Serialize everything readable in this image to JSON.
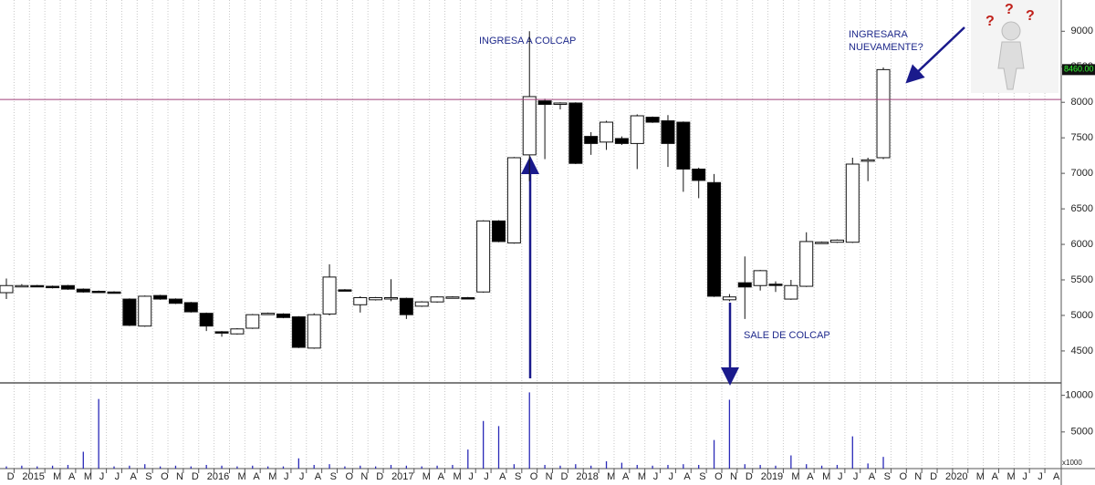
{
  "chart_data": {
    "type": "candlestick",
    "categories": [
      "D",
      "2015",
      null,
      "M",
      "A",
      "M",
      "J",
      "J",
      "A",
      "S",
      "O",
      "N",
      "D",
      "2016",
      null,
      "M",
      "A",
      "M",
      "J",
      "J",
      "A",
      "S",
      "O",
      "N",
      "D",
      "2017",
      null,
      "M",
      "A",
      "M",
      "J",
      "J",
      "A",
      "S",
      "O",
      "N",
      "D",
      "2018",
      null,
      "M",
      "A",
      "M",
      "J",
      "J",
      "A",
      "S",
      "O",
      "N",
      "D",
      "2019",
      null,
      "M",
      "A",
      "M",
      "J",
      "J",
      "A",
      "S",
      "O",
      "N",
      "D",
      "2020",
      null,
      "M",
      "A",
      "M",
      "J",
      "J",
      "A"
    ],
    "open": [
      5320,
      5420,
      5420,
      5410,
      5420,
      5370,
      5340,
      5330,
      5230,
      4850,
      5280,
      5230,
      5180,
      5030,
      4770,
      4740,
      4820,
      5030,
      5020,
      4980,
      4540,
      5020,
      5360,
      5150,
      5220,
      5240,
      5240,
      5130,
      5190,
      5250,
      5250,
      5330,
      6330,
      6020,
      7260,
      8020,
      7980,
      7990,
      7520,
      7440,
      7490,
      7420,
      7790,
      7740,
      7720,
      7060,
      6870,
      5220,
      5460,
      5420,
      5440,
      5230,
      5410,
      6020,
      6030,
      6030,
      7170,
      7220,
      null,
      null,
      null,
      null,
      null,
      null,
      null,
      null,
      null,
      null,
      null
    ],
    "high": [
      5520,
      5440,
      5430,
      5420,
      5430,
      5380,
      5350,
      5340,
      5240,
      5280,
      5290,
      5240,
      5190,
      5040,
      4780,
      4820,
      5020,
      5040,
      5030,
      4990,
      5030,
      5720,
      5370,
      5270,
      5260,
      5510,
      5250,
      5200,
      5270,
      5270,
      5260,
      6340,
      6340,
      7230,
      9000,
      8050,
      8000,
      8000,
      7580,
      7740,
      7520,
      7830,
      7800,
      7820,
      7730,
      7080,
      6990,
      5300,
      5830,
      5640,
      5480,
      5500,
      6170,
      6040,
      6070,
      7220,
      7220,
      8490,
      null,
      null,
      null,
      null,
      null,
      null,
      null,
      null,
      null,
      null,
      null
    ],
    "low": [
      5230,
      5410,
      5400,
      5380,
      5360,
      5320,
      5320,
      5310,
      4850,
      4840,
      5220,
      5160,
      5040,
      4780,
      4700,
      4730,
      4810,
      5020,
      4960,
      4540,
      4530,
      5000,
      5340,
      5040,
      5210,
      5200,
      4950,
      5120,
      5180,
      5240,
      5230,
      5320,
      6030,
      6010,
      6890,
      7200,
      7900,
      7130,
      7260,
      7330,
      7400,
      7060,
      7710,
      7090,
      6740,
      6650,
      5260,
      5200,
      4950,
      5350,
      5330,
      5220,
      5400,
      6010,
      6020,
      6020,
      6890,
      7200,
      null,
      null,
      null,
      null,
      null,
      null,
      null,
      null,
      null,
      null,
      null
    ],
    "close": [
      5420,
      5420,
      5410,
      5390,
      5370,
      5330,
      5330,
      5320,
      4860,
      5270,
      5230,
      5170,
      5050,
      4850,
      4750,
      4810,
      5010,
      5030,
      4970,
      4550,
      5010,
      5540,
      5350,
      5250,
      5250,
      5250,
      5010,
      5190,
      5260,
      5260,
      5240,
      6330,
      6040,
      7220,
      8080,
      7970,
      7990,
      7140,
      7420,
      7720,
      7420,
      7810,
      7720,
      7420,
      7060,
      6900,
      5270,
      5260,
      5400,
      5630,
      5430,
      5420,
      6040,
      6030,
      6060,
      7130,
      7190,
      8460,
      null,
      null,
      null,
      null,
      null,
      null,
      null,
      null,
      null,
      null,
      null
    ],
    "volume": [
      300,
      400,
      300,
      400,
      500,
      2300,
      9500,
      300,
      400,
      600,
      300,
      400,
      300,
      500,
      400,
      300,
      400,
      300,
      300,
      1400,
      500,
      600,
      300,
      400,
      300,
      500,
      400,
      300,
      400,
      500,
      2600,
      6500,
      5800,
      600,
      10400,
      500,
      400,
      600,
      400,
      1000,
      800,
      500,
      400,
      500,
      600,
      500,
      3900,
      9400,
      600,
      500,
      400,
      1800,
      600,
      400,
      500,
      4400,
      700,
      1600,
      null,
      null,
      null,
      null,
      null,
      null,
      null,
      null,
      null,
      null,
      null
    ],
    "ylim": [
      4050,
      9440
    ],
    "yticks": [
      4500,
      5000,
      5500,
      6000,
      6500,
      7000,
      7500,
      8000,
      8500,
      9000
    ],
    "y2lim": [
      0,
      10700
    ],
    "y2ticks": [
      5000,
      10000
    ],
    "volume_unit": "x1000",
    "reference_line": 8040,
    "last_price": {
      "value": 8460,
      "label": "8460.00"
    },
    "annotations": [
      "INGRESA A COLCAP",
      "INGRESARA",
      "NUEVAMENTE?",
      "SALE DE COLCAP"
    ],
    "grid": true
  }
}
